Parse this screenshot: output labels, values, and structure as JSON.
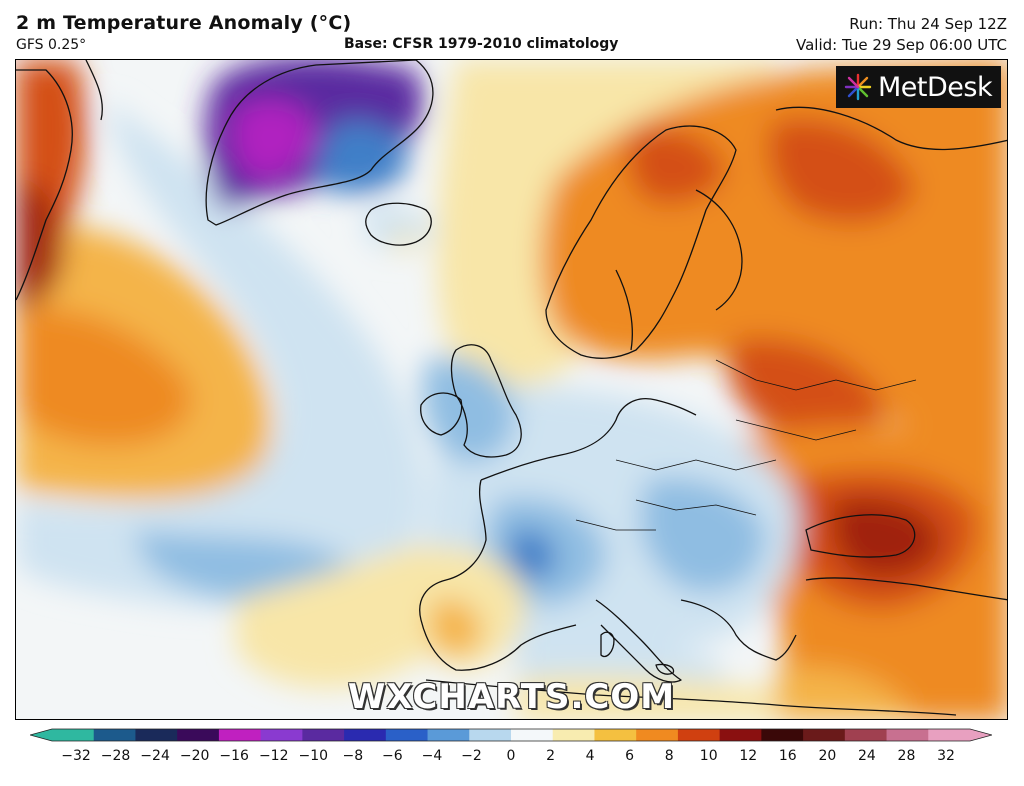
{
  "header": {
    "title": "2 m Temperature Anomaly (°C)",
    "model": "GFS 0.25°",
    "base": "Base: CFSR 1979-2010 climatology",
    "run": "Run: Thu 24 Sep 12Z",
    "valid": "Valid: Tue 29 Sep 06:00 UTC"
  },
  "logo": {
    "text": "MetDesk",
    "icon": "metdesk-starburst-icon"
  },
  "watermark": "WXCHARTS.COM",
  "legend": {
    "ticks": [
      "−32",
      "−28",
      "−24",
      "−20",
      "−16",
      "−12",
      "−10",
      "−8",
      "−6",
      "−4",
      "−2",
      "0",
      "2",
      "4",
      "6",
      "8",
      "10",
      "12",
      "16",
      "20",
      "24",
      "28",
      "32"
    ],
    "colors": [
      "#2fb8a0",
      "#1c5a8c",
      "#1a2a5a",
      "#3a0a5a",
      "#c020c0",
      "#8a3ad0",
      "#5a2aa0",
      "#2a2ab0",
      "#2a60c8",
      "#5a9ad8",
      "#b8d8ee",
      "#f4f8fa",
      "#f8ecb0",
      "#f4c040",
      "#f08a20",
      "#d04010",
      "#8a1010",
      "#3a0808",
      "#6a1a1a",
      "#a04050",
      "#c87090",
      "#e8a0c0"
    ]
  },
  "map": {
    "region": "Europe and North Atlantic",
    "colors": {
      "ocean_neutral": "#f3f6f7",
      "cold_light": "#cfe3f1",
      "cold": "#8fbde2",
      "cold_strong": "#3f7fc8",
      "cold_very": "#5a2aa0",
      "cold_extreme": "#b020c0",
      "warm_light": "#f8e6a8",
      "warm": "#f4b44a",
      "warm_strong": "#ee8a24",
      "hot": "#d45014",
      "very_hot": "#a02010",
      "coast": "#111111"
    }
  }
}
